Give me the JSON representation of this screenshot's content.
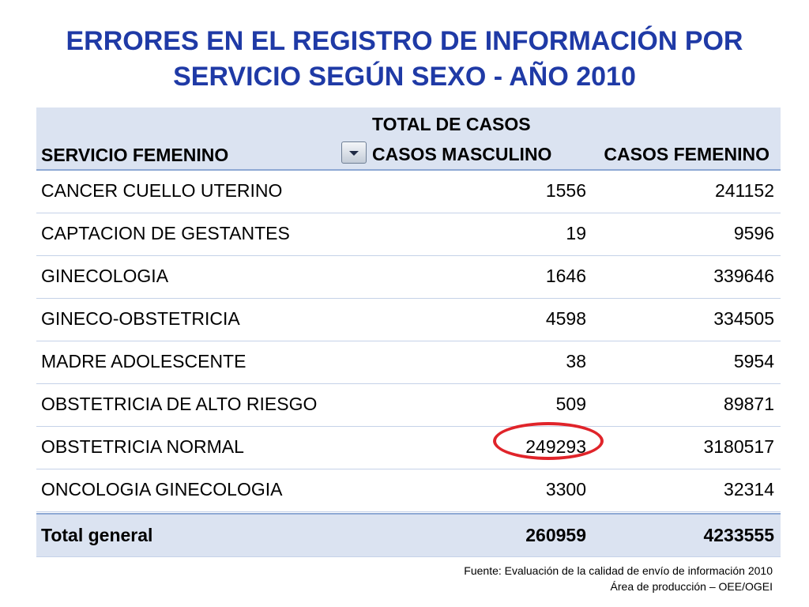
{
  "title": {
    "line1": "ERRORES EN EL REGISTRO DE INFORMACIÓN POR",
    "line2": "SERVICIO SEGÚN SEXO - AÑO 2010"
  },
  "table": {
    "header": {
      "total_label": "TOTAL DE CASOS",
      "servicio_label": "SERVICIO FEMENINO",
      "masc_label": "CASOS MASCULINO",
      "fem_label": "CASOS FEMENINO"
    },
    "rows": [
      {
        "servicio": "CANCER CUELLO UTERINO",
        "masculino": "1556",
        "femenino": "241152"
      },
      {
        "servicio": "CAPTACION DE GESTANTES",
        "masculino": "19",
        "femenino": "9596"
      },
      {
        "servicio": "GINECOLOGIA",
        "masculino": "1646",
        "femenino": "339646"
      },
      {
        "servicio": "GINECO-OBSTETRICIA",
        "masculino": "4598",
        "femenino": "334505"
      },
      {
        "servicio": "MADRE ADOLESCENTE",
        "masculino": "38",
        "femenino": "5954"
      },
      {
        "servicio": "OBSTETRICIA DE ALTO RIESGO",
        "masculino": "509",
        "femenino": "89871"
      },
      {
        "servicio": "OBSTETRICIA NORMAL",
        "masculino": "249293",
        "femenino": "3180517"
      },
      {
        "servicio": "ONCOLOGIA GINECOLOGIA",
        "masculino": "3300",
        "femenino": "32314"
      }
    ],
    "total": {
      "label": "Total general",
      "masculino": "260959",
      "femenino": "4233555"
    }
  },
  "footer": {
    "line1": "Fuente: Evaluación de la calidad de envío de información  2010",
    "line2": "Área de producción – OEE/OGEI"
  },
  "colors": {
    "title": "#1f3aa6",
    "header_bg": "#dbe3f1",
    "highlight": "#e0242a"
  }
}
